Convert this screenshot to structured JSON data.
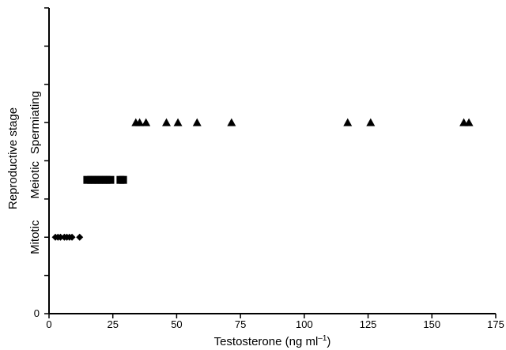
{
  "chart_data": {
    "type": "scatter",
    "title": "",
    "xlabel_main": "Testosterone (ng ml",
    "xlabel_sup": "–1",
    "xlabel_close": ")",
    "ylabel": "Reproductive stage",
    "xlim": [
      0,
      175
    ],
    "ylim": [
      0,
      4
    ],
    "x_ticks": [
      "0",
      "25",
      "50",
      "75",
      "100",
      "125",
      "150",
      "175"
    ],
    "y_tick_values": [
      0,
      0.5,
      1,
      1.5,
      2,
      2.5,
      3,
      3.5,
      4
    ],
    "y_tick_labels": {
      "0": "0"
    },
    "stage_labels": [
      {
        "label": "Mitotic",
        "y": 1
      },
      {
        "label": "Meiotic",
        "y": 1.75
      },
      {
        "label": "Spermiating",
        "y": 2.5
      }
    ],
    "grid": false,
    "legend": "none",
    "series": [
      {
        "marker": "diamond",
        "y": 1,
        "x": [
          2.5,
          3.5,
          4.5,
          6,
          7,
          8,
          9,
          12
        ]
      },
      {
        "marker": "square",
        "y": 1.75,
        "x": [
          15,
          16.5,
          18,
          19.5,
          21,
          22.5,
          24,
          28,
          29
        ]
      },
      {
        "marker": "triangle",
        "y": 2.5,
        "x": [
          34,
          35.5,
          38,
          46,
          50.5,
          58,
          71.5,
          117,
          126,
          162.5,
          164.5
        ]
      }
    ]
  }
}
